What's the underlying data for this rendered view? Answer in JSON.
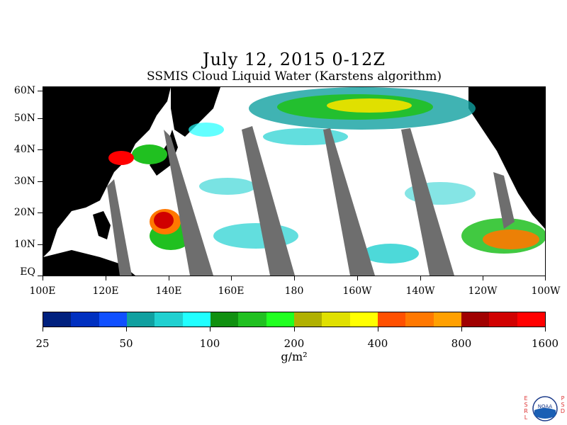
{
  "title": "July 12, 2015 0-12Z",
  "subtitle": "SSMIS Cloud Liquid Water (Karstens algorithm)",
  "lat_labels": [
    "60N",
    "50N",
    "40N",
    "30N",
    "20N",
    "10N",
    "EQ"
  ],
  "lon_labels": [
    "100E",
    "120E",
    "140E",
    "160E",
    "180",
    "160W",
    "140W",
    "120W",
    "100W"
  ],
  "colorbar": {
    "colors": [
      "#00207e",
      "#0030c0",
      "#1050ff",
      "#10a0a0",
      "#20d0d0",
      "#20ffff",
      "#109010",
      "#20c020",
      "#20ff20",
      "#b0b000",
      "#e0e000",
      "#ffff00",
      "#ff5000",
      "#ff7800",
      "#ffa000",
      "#a00000",
      "#d00000",
      "#ff0000"
    ],
    "tick_labels": [
      "25",
      "50",
      "100",
      "200",
      "400",
      "800",
      "1600"
    ],
    "units": "g/m²"
  },
  "logo": {
    "left_letters": [
      "E",
      "S",
      "R",
      "L"
    ],
    "right_letters": [
      "P",
      "S",
      "D"
    ],
    "text": "NOAA"
  }
}
